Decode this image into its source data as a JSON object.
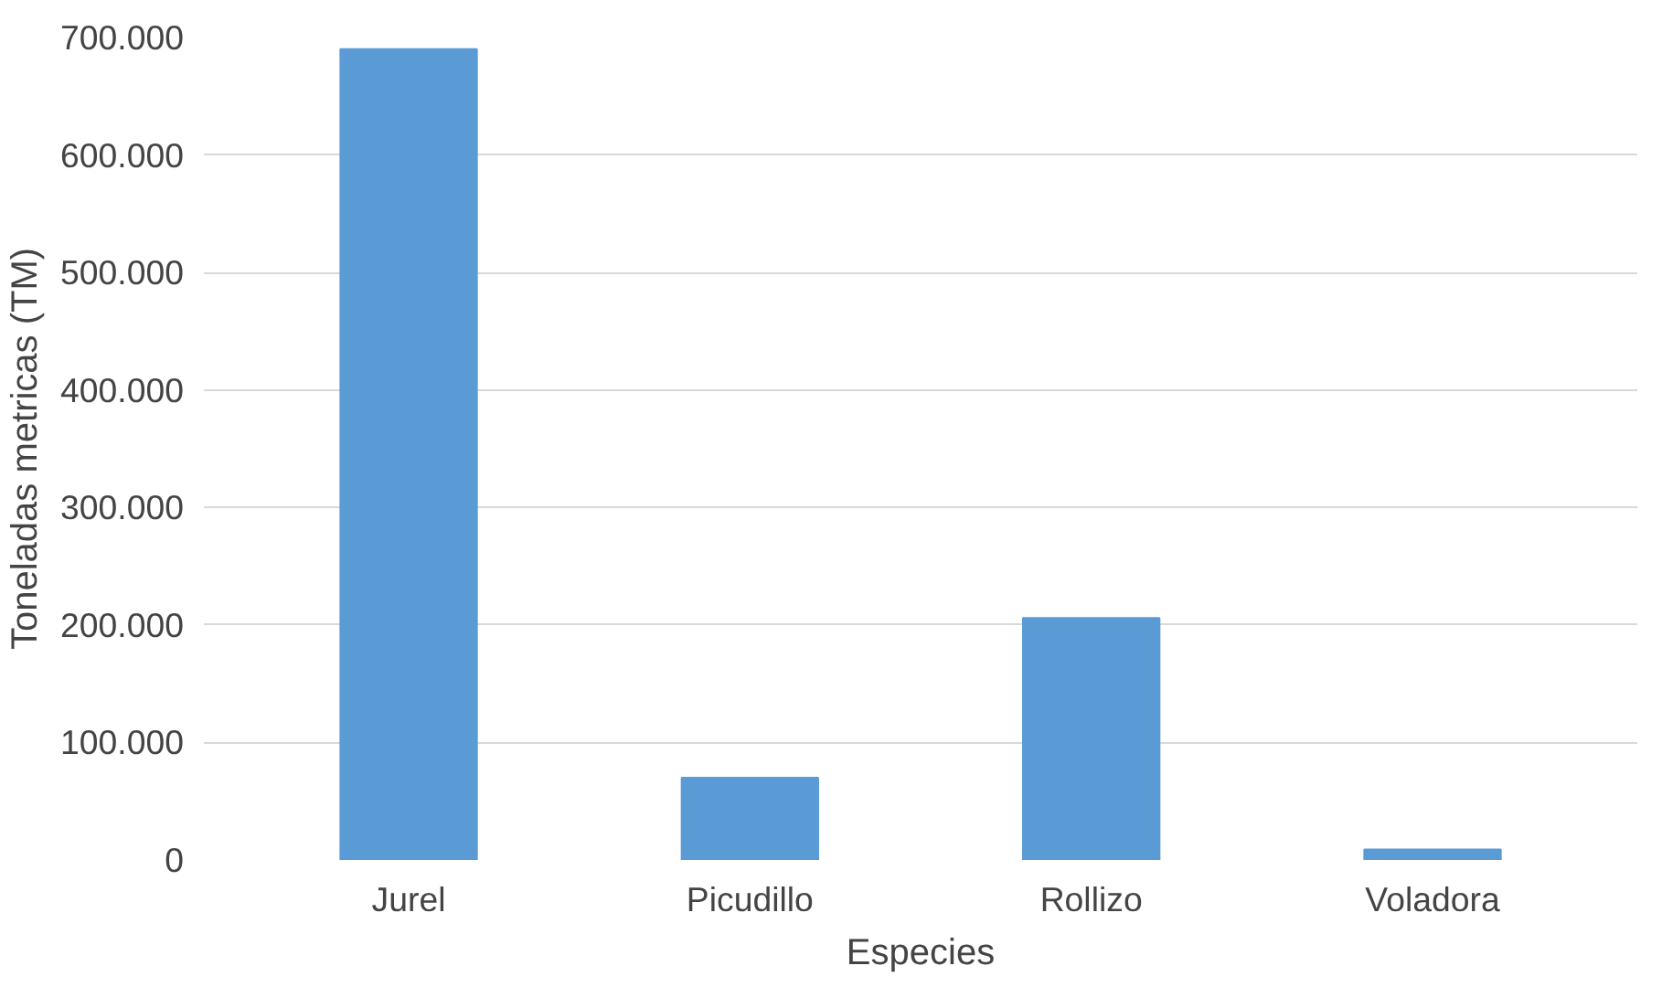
{
  "chart_data": {
    "type": "bar",
    "xlabel": "Especies",
    "ylabel": "Toneladas metricas (TM)",
    "categories": [
      "Jurel",
      "Picudillo",
      "Rollizo",
      "Voladora"
    ],
    "values": [
      690000,
      70000,
      206000,
      9000
    ],
    "color": "#5b9bd5",
    "ylim": [
      0,
      700000
    ],
    "yticks": [
      0,
      {
        "value": 100000,
        "label": "100.000"
      },
      {
        "value": 200000,
        "label": "200.000"
      },
      {
        "value": 300000,
        "label": "300.000"
      },
      {
        "value": 400000,
        "label": "400.000"
      },
      {
        "value": 500000,
        "label": "500.000"
      },
      {
        "value": 600000,
        "label": "600.000"
      },
      {
        "value": 700000,
        "label": "700.000"
      }
    ],
    "grid": "y"
  }
}
